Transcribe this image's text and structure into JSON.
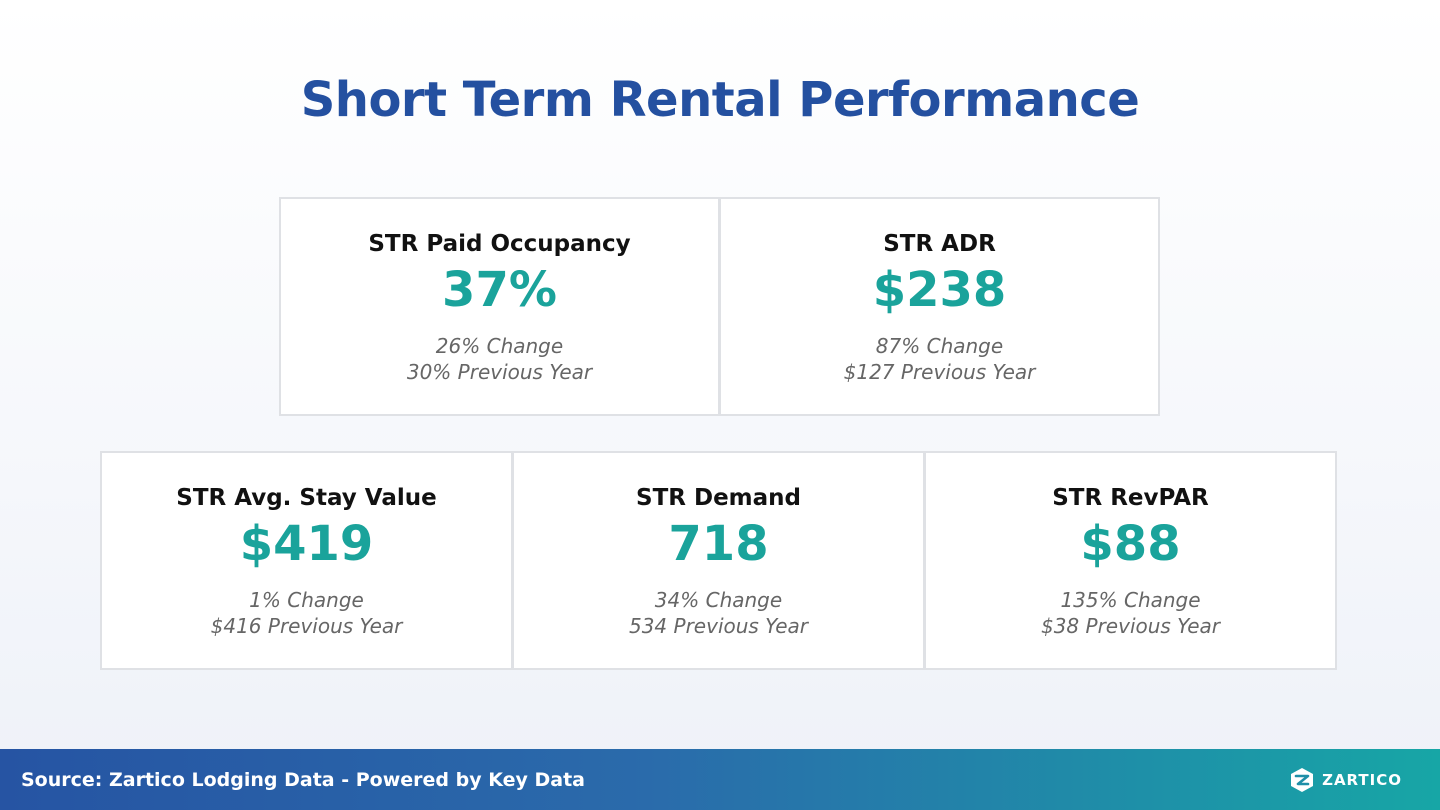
{
  "title": "Short Term Rental Performance",
  "cards": [
    {
      "label": "STR Paid Occupancy",
      "value": "37%",
      "change": "26% Change",
      "previous": "30% Previous Year"
    },
    {
      "label": "STR ADR",
      "value": "$238",
      "change": "87% Change",
      "previous": "$127 Previous Year"
    },
    {
      "label": "STR Avg. Stay Value",
      "value": "$419",
      "change": "1% Change",
      "previous": "$416 Previous Year"
    },
    {
      "label": "STR Demand",
      "value": "718",
      "change": "34% Change",
      "previous": "534 Previous Year"
    },
    {
      "label": "STR RevPAR",
      "value": "$88",
      "change": "135% Change",
      "previous": "$38 Previous Year"
    }
  ],
  "footer": {
    "source": "Source: Zartico Lodging Data - Powered by Key Data",
    "brand": "ZARTICO",
    "logo_icon": "zartico-logo-icon"
  },
  "colors": {
    "title": "#2450a0",
    "value": "#1aa39b",
    "footer_start": "#2654a3",
    "footer_end": "#17a6a6"
  }
}
